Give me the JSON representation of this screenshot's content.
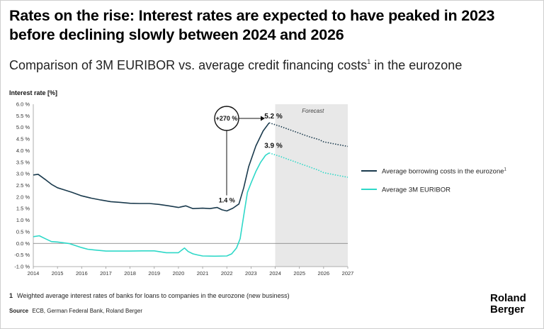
{
  "title": "Rates on the rise: Interest rates are expected to have peaked in 2023 before declining slowly between 2024 and 2026",
  "subtitle": "Comparison of 3M EURIBOR vs. average credit financing costs",
  "subtitle_sup": "1",
  "footnote_marker": "1",
  "footnote": "Weighted average interest rates of banks for loans to companies in the eurozone (new business)",
  "source_label": "Source",
  "source_text": "ECB, German Federal Bank, Roland Berger",
  "logo": [
    "Roland",
    "Berger"
  ],
  "chart_data": {
    "type": "line",
    "ylabel": "Interest rate [%]",
    "ylim": [
      -1.0,
      6.0
    ],
    "yticks": [
      "6.0 %",
      "5.5 %",
      "5.0 %",
      "4.5 %",
      "4.0 %",
      "3.5 %",
      "3.0 %",
      "2.5 %",
      "2.0 %",
      "1.5 %",
      "1.0 %",
      "0.5 %",
      "0.0 %",
      "-0.5 %",
      "-1.0 %"
    ],
    "xlim": [
      2014,
      2027
    ],
    "xticks": [
      "2014",
      "2015",
      "2016",
      "2017",
      "2018",
      "2019",
      "2020",
      "2021",
      "2022",
      "2023",
      "2024",
      "2025",
      "2026",
      "2027"
    ],
    "forecast_label": "Forecast",
    "forecast_start": 2024,
    "colors": {
      "borrowing": "#1a3a4d",
      "euribor": "#2ed8c8",
      "forecast_band": "#e8e8e8"
    },
    "series": [
      {
        "name": "Average borrowing costs in the eurozone",
        "legend_sup": "1",
        "color": "#1a3a4d",
        "x": [
          2014.0,
          2014.2,
          2014.5,
          2014.75,
          2015.0,
          2015.3,
          2015.6,
          2016.0,
          2016.4,
          2016.8,
          2017.2,
          2017.6,
          2018.0,
          2018.4,
          2018.8,
          2019.2,
          2019.6,
          2020.0,
          2020.3,
          2020.6,
          2021.0,
          2021.3,
          2021.6,
          2021.8,
          2022.0,
          2022.25,
          2022.5,
          2022.7,
          2022.9,
          2023.2,
          2023.5,
          2023.75
        ],
        "y": [
          2.95,
          2.98,
          2.75,
          2.55,
          2.4,
          2.3,
          2.2,
          2.05,
          1.95,
          1.87,
          1.8,
          1.77,
          1.73,
          1.72,
          1.72,
          1.68,
          1.62,
          1.55,
          1.62,
          1.5,
          1.52,
          1.5,
          1.55,
          1.45,
          1.4,
          1.52,
          1.7,
          2.4,
          3.3,
          4.2,
          4.85,
          5.2
        ],
        "forecast_x": [
          2023.75,
          2024.2,
          2024.6,
          2025.0,
          2025.4,
          2025.8,
          2026.0,
          2026.5,
          2027.0
        ],
        "forecast_y": [
          5.2,
          5.05,
          4.9,
          4.75,
          4.6,
          4.48,
          4.38,
          4.28,
          4.18
        ]
      },
      {
        "name": "Average 3M EURIBOR",
        "color": "#2ed8c8",
        "x": [
          2014.0,
          2014.25,
          2014.5,
          2014.75,
          2015.0,
          2015.5,
          2016.0,
          2016.25,
          2016.5,
          2017.0,
          2017.5,
          2018.0,
          2018.5,
          2019.0,
          2019.5,
          2020.0,
          2020.25,
          2020.4,
          2020.6,
          2020.8,
          2021.0,
          2021.5,
          2022.0,
          2022.2,
          2022.4,
          2022.55,
          2022.7,
          2022.85,
          2023.0,
          2023.2,
          2023.4,
          2023.6,
          2023.75
        ],
        "y": [
          0.29,
          0.33,
          0.2,
          0.08,
          0.06,
          -0.01,
          -0.18,
          -0.25,
          -0.28,
          -0.33,
          -0.33,
          -0.33,
          -0.32,
          -0.32,
          -0.4,
          -0.4,
          -0.2,
          -0.35,
          -0.45,
          -0.5,
          -0.54,
          -0.55,
          -0.54,
          -0.45,
          -0.2,
          0.2,
          1.2,
          2.2,
          2.6,
          3.1,
          3.5,
          3.8,
          3.9
        ],
        "forecast_x": [
          2023.75,
          2024.2,
          2024.6,
          2025.0,
          2025.4,
          2025.8,
          2026.0,
          2026.5,
          2027.0
        ],
        "forecast_y": [
          3.9,
          3.75,
          3.6,
          3.45,
          3.3,
          3.15,
          3.05,
          2.95,
          2.85
        ]
      }
    ],
    "annotations": {
      "low": "1.4 %",
      "peak_borrowing": "5.2 %",
      "peak_euribor": "3.9 %",
      "change": "+270 %"
    }
  }
}
